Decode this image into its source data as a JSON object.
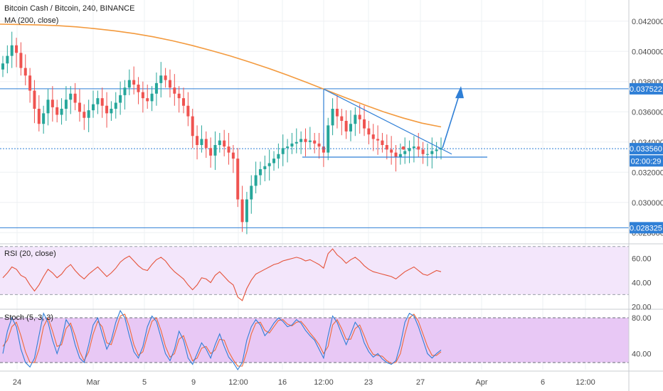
{
  "chart_data": {
    "type": "line",
    "header": {
      "symbol": "Bitcoin Cash / Bitcoin, 240, BINANCE",
      "ma_label": "MA (200, close)",
      "rsi_label": "RSI (20, close)",
      "stoch_label": "Stoch (5, 3, 3)"
    },
    "x_ticks": [
      "24",
      "Mar",
      "5",
      "9",
      "12:00",
      "16",
      "12:00",
      "23",
      "27",
      "Apr",
      "6",
      "12:00"
    ],
    "price_axis": {
      "ylim": [
        0.0274,
        0.0434
      ],
      "tick_labels": [
        "0.042000",
        "0.040000",
        "0.038000",
        "0.036000",
        "0.034000",
        "0.032000",
        "0.030000",
        "0.028000"
      ],
      "tick_values": [
        0.042,
        0.04,
        0.038,
        0.036,
        0.034,
        0.032,
        0.03,
        0.028
      ]
    },
    "price_badges": [
      {
        "label": "0.037522",
        "value": 0.037522,
        "color": "#2f7fd6"
      },
      {
        "label": "0.033560",
        "value": 0.03356,
        "color": "#2f7fd6"
      },
      {
        "label": "02:00:29",
        "value": 0.03275,
        "color": "#2f7fd6"
      },
      {
        "label": "0.028325",
        "value": 0.028325,
        "color": "#2f7fd6"
      }
    ],
    "horizontal_levels": [
      {
        "value": 0.037522,
        "color": "#2f7fd6",
        "style": "solid"
      },
      {
        "value": 0.028325,
        "color": "#2f7fd6",
        "style": "solid"
      },
      {
        "value": 0.03356,
        "color": "#2f7fd6",
        "style": "dotted"
      }
    ],
    "candles_close": [
      0.0392,
      0.0397,
      0.0404,
      0.0399,
      0.0389,
      0.0384,
      0.0374,
      0.0362,
      0.0352,
      0.0359,
      0.0368,
      0.0363,
      0.0358,
      0.0362,
      0.0368,
      0.0372,
      0.0366,
      0.036,
      0.0356,
      0.0361,
      0.0365,
      0.0369,
      0.0364,
      0.0359,
      0.0362,
      0.0366,
      0.0371,
      0.0376,
      0.0381,
      0.0378,
      0.0373,
      0.0369,
      0.0367,
      0.0372,
      0.0379,
      0.0384,
      0.0381,
      0.0376,
      0.0372,
      0.0369,
      0.0364,
      0.0357,
      0.0344,
      0.0338,
      0.0342,
      0.0336,
      0.0331,
      0.0338,
      0.0341,
      0.0337,
      0.0333,
      0.0329,
      0.0302,
      0.0287,
      0.0302,
      0.0311,
      0.0318,
      0.0322,
      0.0324,
      0.0326,
      0.0329,
      0.0332,
      0.0336,
      0.0337,
      0.0339,
      0.034,
      0.0342,
      0.034,
      0.0341,
      0.0339,
      0.0337,
      0.0333,
      0.0351,
      0.0362,
      0.0357,
      0.0354,
      0.0347,
      0.0352,
      0.0358,
      0.0355,
      0.0349,
      0.0345,
      0.0342,
      0.0341,
      0.0338,
      0.0335,
      0.0333,
      0.033,
      0.0332,
      0.0334,
      0.0336,
      0.0337,
      0.0335,
      0.0332,
      0.0332,
      0.0334,
      0.0335,
      0.0336
    ],
    "ma200": [
      0.0418,
      0.04178,
      0.04175,
      0.0417,
      0.04162,
      0.0415,
      0.04136,
      0.04118,
      0.04096,
      0.0407,
      0.0404,
      0.04006,
      0.0397,
      0.0393,
      0.03888,
      0.03842,
      0.03794,
      0.03744,
      0.03694,
      0.03646,
      0.036,
      0.0356,
      0.03525,
      0.035
    ],
    "rsi": {
      "ylim": [
        19,
        71
      ],
      "band": [
        30,
        70
      ],
      "tick_labels": [
        "60.00",
        "40.00",
        "20.00"
      ],
      "tick_values": [
        60,
        40,
        20
      ],
      "values": [
        44,
        48,
        53,
        51,
        46,
        44,
        38,
        33,
        38,
        45,
        51,
        48,
        44,
        47,
        52,
        55,
        50,
        46,
        43,
        47,
        50,
        53,
        49,
        45,
        48,
        52,
        57,
        60,
        62,
        58,
        54,
        51,
        50,
        55,
        59,
        61,
        58,
        53,
        49,
        46,
        43,
        38,
        34,
        38,
        44,
        43,
        40,
        46,
        49,
        45,
        41,
        38,
        28,
        25,
        35,
        42,
        47,
        49,
        51,
        53,
        55,
        56,
        58,
        59,
        60,
        61,
        60,
        58,
        59,
        57,
        55,
        52,
        64,
        68,
        63,
        60,
        56,
        59,
        61,
        58,
        54,
        51,
        49,
        48,
        47,
        46,
        45,
        43,
        46,
        49,
        51,
        53,
        50,
        47,
        46,
        48,
        50,
        49
      ]
    },
    "stoch": {
      "ylim": [
        22,
        88
      ],
      "band": [
        30,
        80
      ],
      "tick_labels": [
        "80.00",
        "40.00"
      ],
      "tick_values": [
        80,
        40
      ],
      "k_values": [
        40,
        65,
        80,
        70,
        45,
        30,
        25,
        35,
        60,
        85,
        75,
        55,
        40,
        55,
        78,
        70,
        50,
        35,
        30,
        50,
        72,
        80,
        62,
        45,
        55,
        75,
        88,
        80,
        60,
        42,
        35,
        48,
        70,
        82,
        76,
        58,
        40,
        32,
        45,
        65,
        55,
        35,
        28,
        40,
        52,
        45,
        35,
        50,
        62,
        48,
        36,
        30,
        22,
        30,
        55,
        70,
        78,
        72,
        60,
        66,
        74,
        80,
        76,
        70,
        72,
        78,
        74,
        66,
        60,
        55,
        45,
        35,
        60,
        82,
        75,
        62,
        50,
        62,
        75,
        68,
        52,
        42,
        36,
        40,
        34,
        30,
        28,
        32,
        50,
        75,
        85,
        82,
        70,
        55,
        40,
        35,
        40,
        44
      ],
      "d_values": [
        48,
        55,
        70,
        75,
        60,
        42,
        30,
        30,
        45,
        70,
        80,
        65,
        48,
        50,
        68,
        74,
        60,
        42,
        32,
        42,
        62,
        76,
        70,
        52,
        50,
        66,
        82,
        84,
        70,
        50,
        38,
        42,
        60,
        76,
        80,
        66,
        48,
        36,
        40,
        56,
        60,
        45,
        32,
        35,
        46,
        48,
        40,
        44,
        56,
        55,
        42,
        33,
        26,
        26,
        42,
        62,
        74,
        75,
        66,
        63,
        70,
        77,
        78,
        73,
        71,
        75,
        76,
        70,
        63,
        57,
        50,
        40,
        48,
        72,
        78,
        68,
        56,
        56,
        68,
        72,
        60,
        47,
        39,
        38,
        37,
        32,
        29,
        30,
        40,
        62,
        80,
        84,
        76,
        62,
        48,
        38,
        38,
        42
      ]
    },
    "colors": {
      "up": "#26a69a",
      "down": "#ef5350",
      "ma": "#f39a3e",
      "level": "#2f7fd6",
      "rsi_line": "#e5533a",
      "rsi_fill": "#f3e6fb",
      "stoch_k": "#2f7fd6",
      "stoch_d": "#ef6a3a",
      "stoch_fill": "#e8c8f5"
    }
  }
}
